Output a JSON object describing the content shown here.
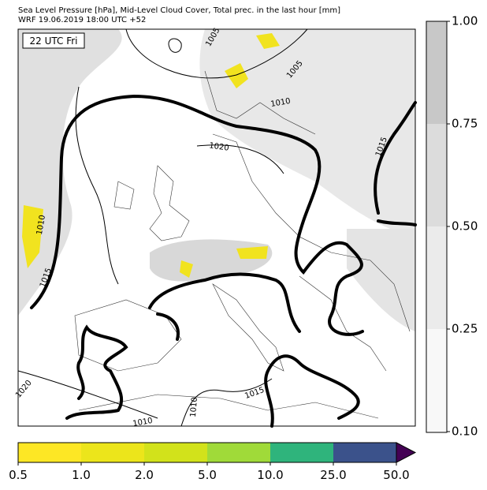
{
  "header": {
    "line1": "Sea Level Pressure [hPa], Mid-Level Cloud Cover, Total prec. in the last hour [mm]",
    "line2": "WRF 19.06.2019 18:00 UTC +52"
  },
  "map": {
    "time_label": "22 UTC Fri",
    "contour_labels": [
      "1005",
      "1005",
      "1010",
      "1020",
      "1010",
      "1015",
      "1015",
      "1020",
      "1015",
      "1010",
      "1010"
    ]
  },
  "cloud_colorbar": {
    "ticks": [
      "1.00",
      "0.75",
      "0.50",
      "0.25",
      "0.10"
    ]
  },
  "precip_colorbar": {
    "ticks": [
      "0.5",
      "1.0",
      "2.0",
      "5.0",
      "10.0",
      "25.0",
      "50.0"
    ]
  }
}
